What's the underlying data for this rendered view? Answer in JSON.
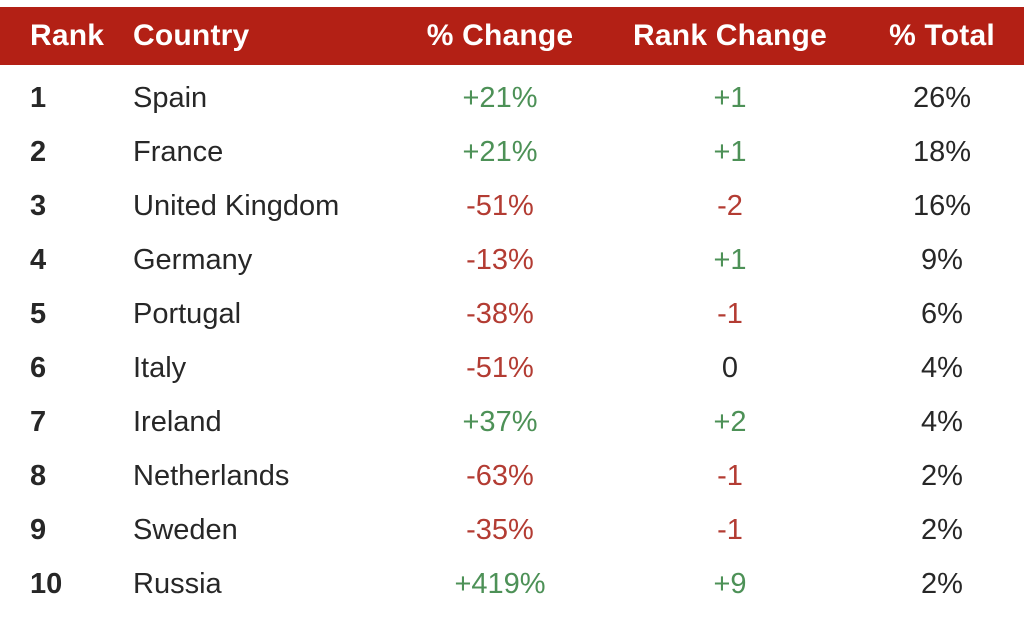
{
  "colors": {
    "header_bg": "#B32015",
    "header_text": "#FFFFFF",
    "body_text": "#272727",
    "positive": "#4D9157",
    "negative": "#B33C33",
    "neutral": "#272727"
  },
  "table": {
    "columns": [
      {
        "key": "rank",
        "label": "Rank"
      },
      {
        "key": "country",
        "label": "Country"
      },
      {
        "key": "pct_change",
        "label": "% Change"
      },
      {
        "key": "rank_change",
        "label": "Rank Change"
      },
      {
        "key": "pct_total",
        "label": "% Total"
      }
    ],
    "rows": [
      {
        "rank": "1",
        "country": "Spain",
        "pct_change": "+21%",
        "pct_change_sentiment": "positive",
        "rank_change": "+1",
        "rank_change_sentiment": "positive",
        "pct_total": "26%"
      },
      {
        "rank": "2",
        "country": "France",
        "pct_change": "+21%",
        "pct_change_sentiment": "positive",
        "rank_change": "+1",
        "rank_change_sentiment": "positive",
        "pct_total": "18%"
      },
      {
        "rank": "3",
        "country": "United Kingdom",
        "pct_change": "-51%",
        "pct_change_sentiment": "negative",
        "rank_change": "-2",
        "rank_change_sentiment": "negative",
        "pct_total": "16%"
      },
      {
        "rank": "4",
        "country": "Germany",
        "pct_change": "-13%",
        "pct_change_sentiment": "negative",
        "rank_change": "+1",
        "rank_change_sentiment": "positive",
        "pct_total": "9%"
      },
      {
        "rank": "5",
        "country": "Portugal",
        "pct_change": "-38%",
        "pct_change_sentiment": "negative",
        "rank_change": "-1",
        "rank_change_sentiment": "negative",
        "pct_total": "6%"
      },
      {
        "rank": "6",
        "country": "Italy",
        "pct_change": "-51%",
        "pct_change_sentiment": "negative",
        "rank_change": "0",
        "rank_change_sentiment": "neutral",
        "pct_total": "4%"
      },
      {
        "rank": "7",
        "country": "Ireland",
        "pct_change": "+37%",
        "pct_change_sentiment": "positive",
        "rank_change": "+2",
        "rank_change_sentiment": "positive",
        "pct_total": "4%"
      },
      {
        "rank": "8",
        "country": "Netherlands",
        "pct_change": "-63%",
        "pct_change_sentiment": "negative",
        "rank_change": "-1",
        "rank_change_sentiment": "negative",
        "pct_total": "2%"
      },
      {
        "rank": "9",
        "country": "Sweden",
        "pct_change": "-35%",
        "pct_change_sentiment": "negative",
        "rank_change": "-1",
        "rank_change_sentiment": "negative",
        "pct_total": "2%"
      },
      {
        "rank": "10",
        "country": "Russia",
        "pct_change": "+419%",
        "pct_change_sentiment": "positive",
        "rank_change": "+9",
        "rank_change_sentiment": "positive",
        "pct_total": "2%"
      }
    ]
  },
  "chart_data": {
    "type": "table",
    "columns": [
      "Rank",
      "Country",
      "% Change",
      "Rank Change",
      "% Total"
    ],
    "rows": [
      [
        1,
        "Spain",
        "+21%",
        "+1",
        "26%"
      ],
      [
        2,
        "France",
        "+21%",
        "+1",
        "18%"
      ],
      [
        3,
        "United Kingdom",
        "-51%",
        "-2",
        "16%"
      ],
      [
        4,
        "Germany",
        "-13%",
        "+1",
        "9%"
      ],
      [
        5,
        "Portugal",
        "-38%",
        "-1",
        "6%"
      ],
      [
        6,
        "Italy",
        "-51%",
        "0",
        "4%"
      ],
      [
        7,
        "Ireland",
        "+37%",
        "+2",
        "4%"
      ],
      [
        8,
        "Netherlands",
        "-63%",
        "-1",
        "2%"
      ],
      [
        9,
        "Sweden",
        "-35%",
        "-1",
        "2%"
      ],
      [
        10,
        "Russia",
        "+419%",
        "+9",
        "2%"
      ]
    ],
    "value_color_rule": "positive values green, negative values red, zero black",
    "legend_position": "none",
    "grid": false
  }
}
